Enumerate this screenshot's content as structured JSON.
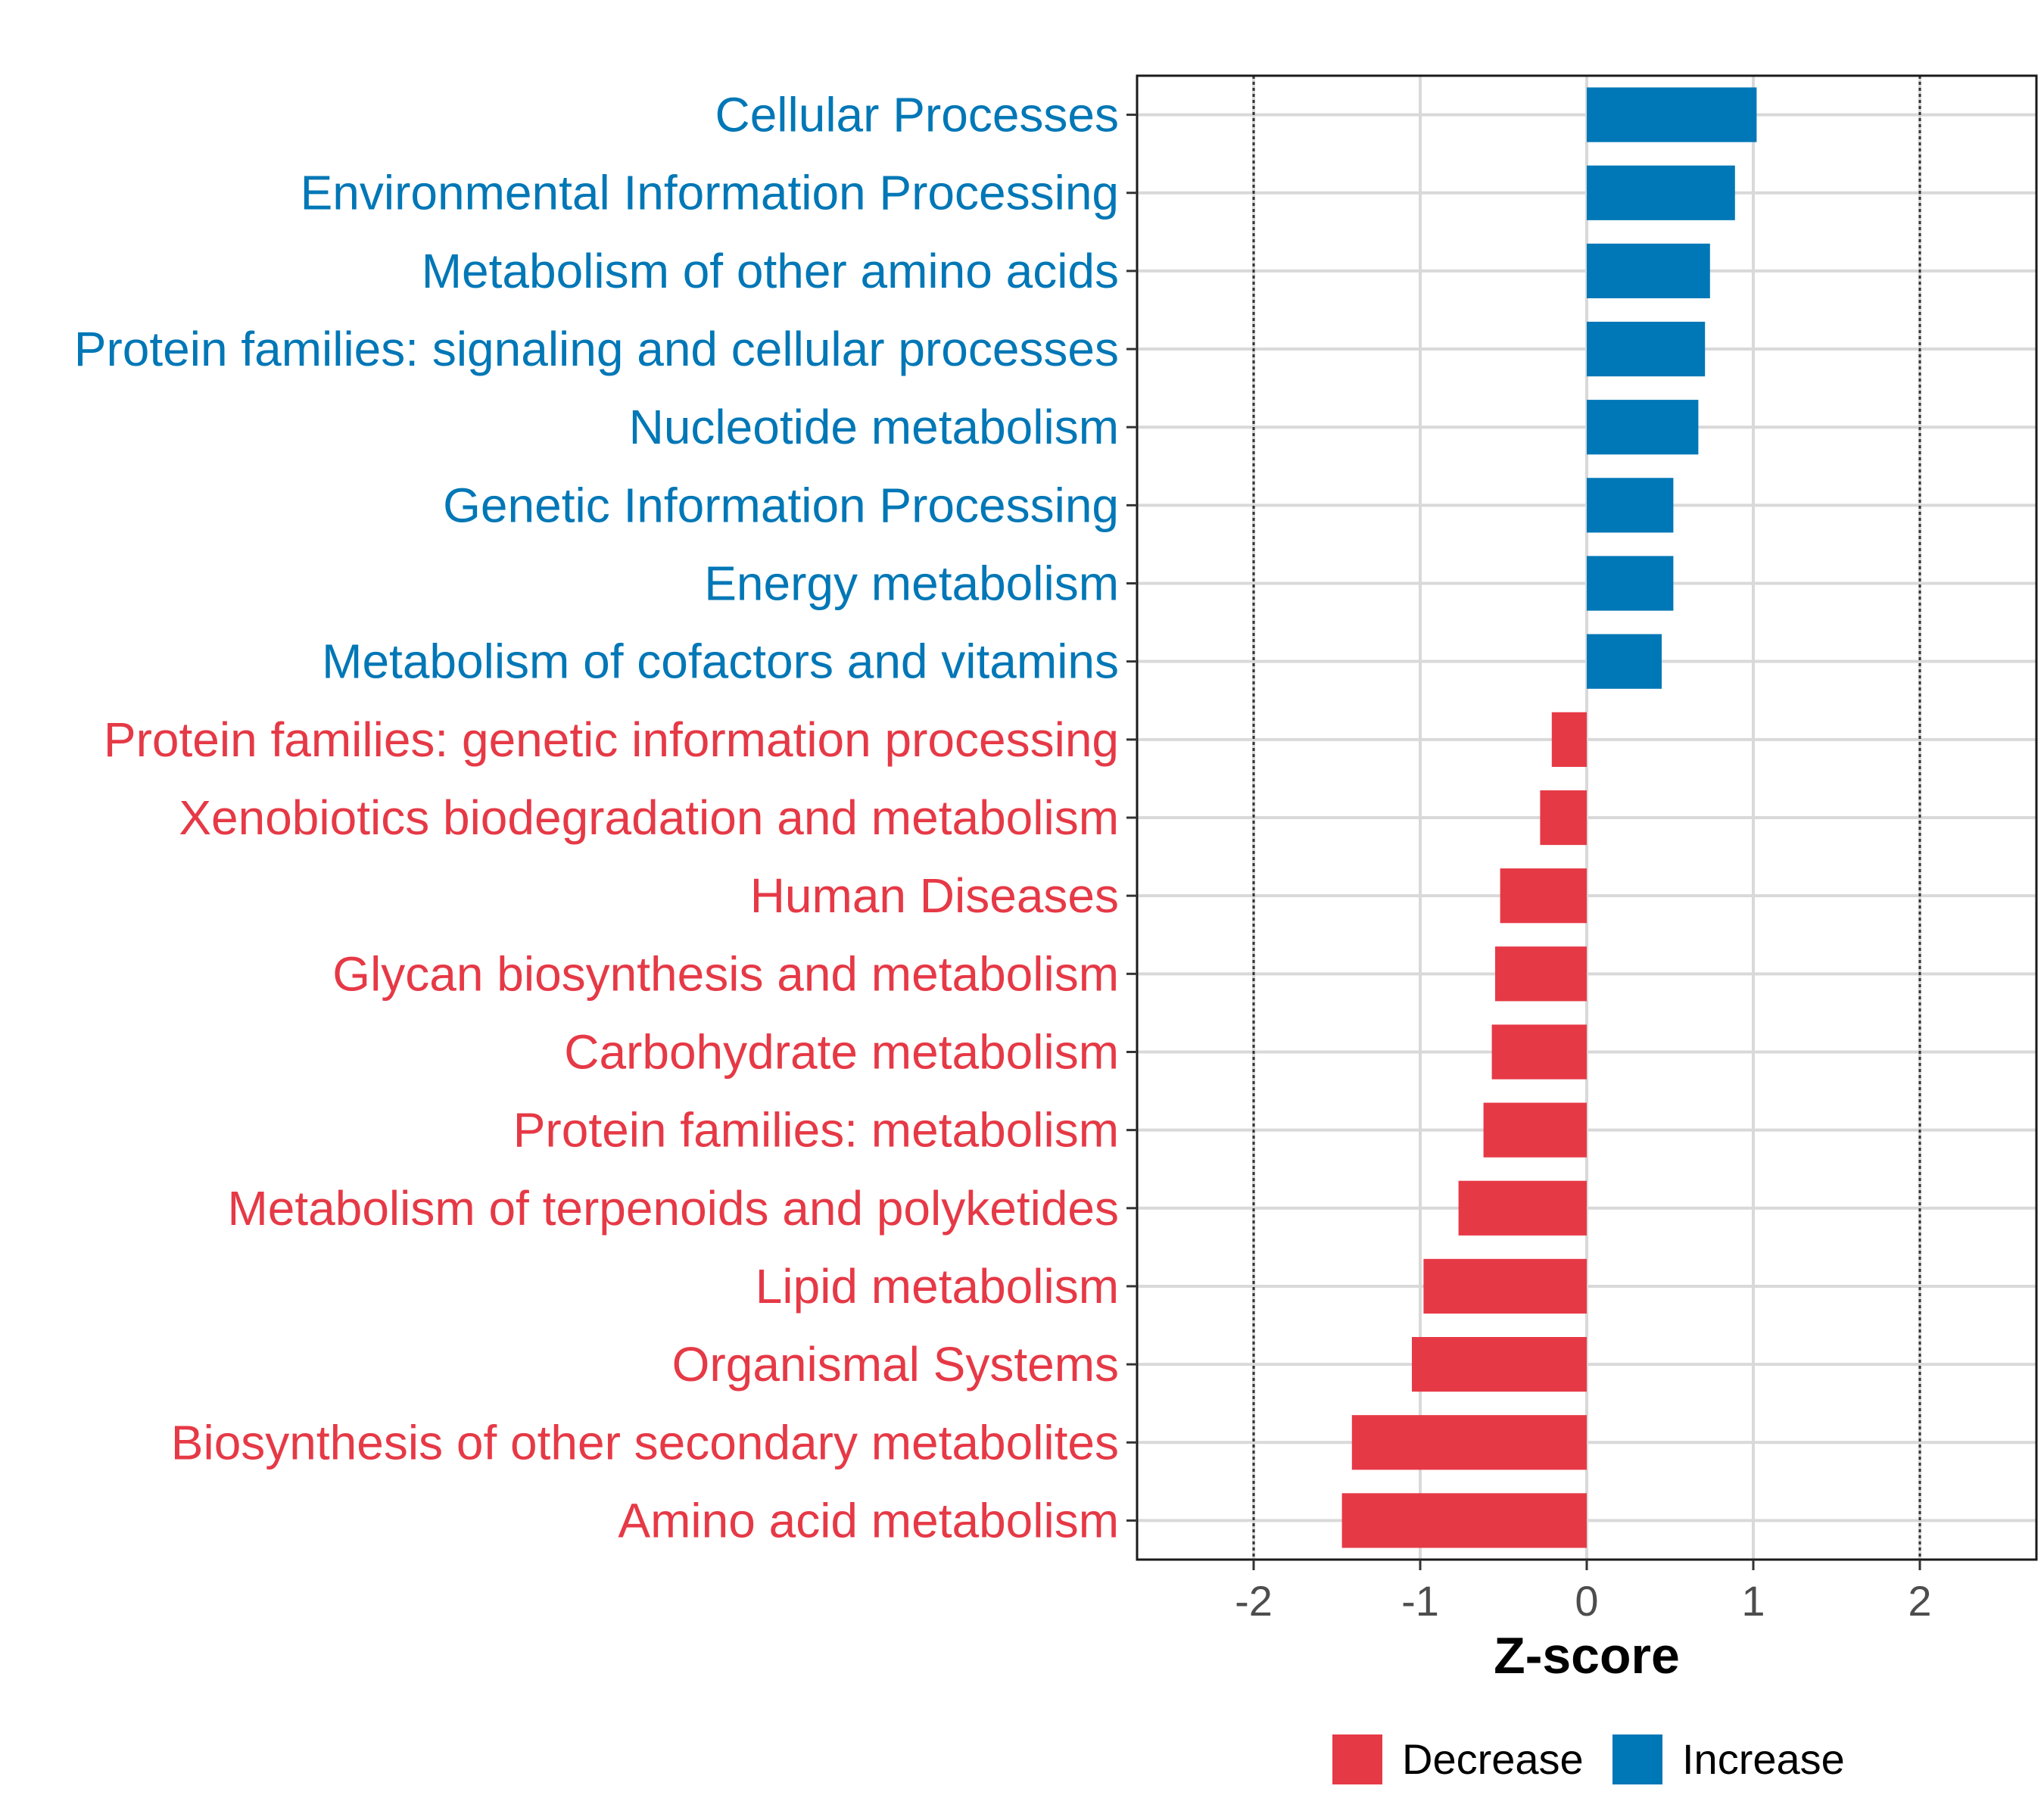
{
  "chart_data": {
    "type": "bar",
    "orientation": "horizontal",
    "xlabel": "Z-score",
    "xlim": [
      -2.7,
      2.7
    ],
    "xticks": [
      -2,
      -1,
      0,
      1,
      2
    ],
    "xtick_labels": [
      "-2",
      "-1",
      "0",
      "1",
      "2"
    ],
    "reference_lines": [
      -2,
      2
    ],
    "grid": true,
    "legend_position": "bottom",
    "colors": {
      "Decrease": "#e63946",
      "Increase": "#0077b6"
    },
    "legend": [
      {
        "name": "Decrease",
        "color": "#e63946"
      },
      {
        "name": "Increase",
        "color": "#0077b6"
      }
    ],
    "categories": [
      "Cellular Processes",
      "Environmental Information Processing",
      "Metabolism of other amino acids",
      "Protein families: signaling and cellular processes",
      "Nucleotide metabolism",
      "Genetic Information Processing",
      "Energy metabolism",
      "Metabolism of cofactors and vitamins",
      "Protein families: genetic information processing",
      "Xenobiotics biodegradation and metabolism",
      "Human Diseases",
      "Glycan biosynthesis and metabolism",
      "Carbohydrate metabolism",
      "Protein families: metabolism",
      "Metabolism of terpenoids and polyketides",
      "Lipid metabolism",
      "Organismal Systems",
      "Biosynthesis of other secondary metabolites",
      "Amino acid metabolism"
    ],
    "values": [
      1.02,
      0.89,
      0.74,
      0.71,
      0.67,
      0.52,
      0.52,
      0.45,
      -0.21,
      -0.28,
      -0.52,
      -0.55,
      -0.57,
      -0.62,
      -0.77,
      -0.98,
      -1.05,
      -1.41,
      -1.47
    ],
    "groups": [
      "Increase",
      "Increase",
      "Increase",
      "Increase",
      "Increase",
      "Increase",
      "Increase",
      "Increase",
      "Decrease",
      "Decrease",
      "Decrease",
      "Decrease",
      "Decrease",
      "Decrease",
      "Decrease",
      "Decrease",
      "Decrease",
      "Decrease",
      "Decrease"
    ]
  }
}
